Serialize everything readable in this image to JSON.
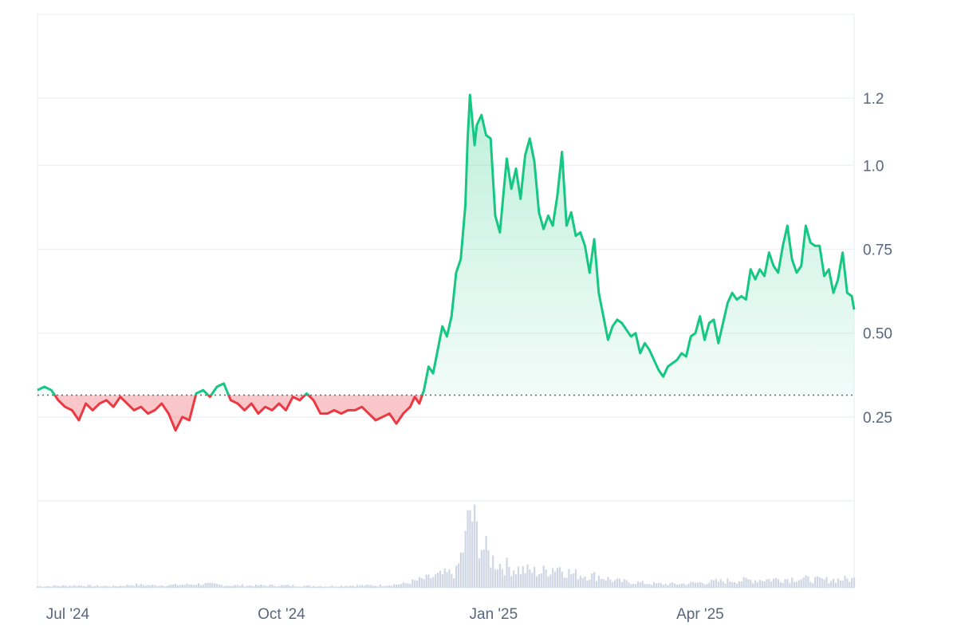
{
  "chart_data": {
    "type": "area",
    "baseline": 0.315,
    "grid": true,
    "y_ticks": [
      {
        "value": 0.25,
        "label": "0.25"
      },
      {
        "value": 0.5,
        "label": "0.50"
      },
      {
        "value": 0.75,
        "label": "0.75"
      },
      {
        "value": 1.0,
        "label": "1.0"
      },
      {
        "value": 1.2,
        "label": "1.2"
      }
    ],
    "x_ticks": [
      {
        "date": "2024-07-01",
        "label": "Jul '24"
      },
      {
        "date": "2024-10-01",
        "label": "Oct '24"
      },
      {
        "date": "2025-01-01",
        "label": "Jan '25"
      },
      {
        "date": "2025-04-01",
        "label": "Apr '25"
      }
    ],
    "x_range": [
      "2024-06-29",
      "2025-06-19"
    ],
    "y_range": [
      0,
      1.45
    ],
    "price_series": [
      [
        "2024-06-29",
        0.33
      ],
      [
        "2024-07-02",
        0.34
      ],
      [
        "2024-07-05",
        0.33
      ],
      [
        "2024-07-08",
        0.3
      ],
      [
        "2024-07-11",
        0.28
      ],
      [
        "2024-07-14",
        0.27
      ],
      [
        "2024-07-17",
        0.24
      ],
      [
        "2024-07-20",
        0.29
      ],
      [
        "2024-07-23",
        0.27
      ],
      [
        "2024-07-26",
        0.29
      ],
      [
        "2024-07-29",
        0.3
      ],
      [
        "2024-08-01",
        0.28
      ],
      [
        "2024-08-04",
        0.31
      ],
      [
        "2024-08-07",
        0.29
      ],
      [
        "2024-08-10",
        0.27
      ],
      [
        "2024-08-13",
        0.28
      ],
      [
        "2024-08-16",
        0.26
      ],
      [
        "2024-08-19",
        0.27
      ],
      [
        "2024-08-22",
        0.29
      ],
      [
        "2024-08-25",
        0.26
      ],
      [
        "2024-08-28",
        0.21
      ],
      [
        "2024-08-31",
        0.25
      ],
      [
        "2024-09-03",
        0.24
      ],
      [
        "2024-09-06",
        0.32
      ],
      [
        "2024-09-09",
        0.33
      ],
      [
        "2024-09-12",
        0.31
      ],
      [
        "2024-09-15",
        0.34
      ],
      [
        "2024-09-18",
        0.35
      ],
      [
        "2024-09-21",
        0.3
      ],
      [
        "2024-09-24",
        0.29
      ],
      [
        "2024-09-27",
        0.27
      ],
      [
        "2024-09-30",
        0.29
      ],
      [
        "2024-10-03",
        0.26
      ],
      [
        "2024-10-06",
        0.28
      ],
      [
        "2024-10-09",
        0.27
      ],
      [
        "2024-10-12",
        0.29
      ],
      [
        "2024-10-15",
        0.27
      ],
      [
        "2024-10-18",
        0.31
      ],
      [
        "2024-10-21",
        0.3
      ],
      [
        "2024-10-24",
        0.32
      ],
      [
        "2024-10-27",
        0.3
      ],
      [
        "2024-10-30",
        0.26
      ],
      [
        "2024-11-02",
        0.26
      ],
      [
        "2024-11-05",
        0.27
      ],
      [
        "2024-11-08",
        0.26
      ],
      [
        "2024-11-11",
        0.27
      ],
      [
        "2024-11-14",
        0.27
      ],
      [
        "2024-11-17",
        0.28
      ],
      [
        "2024-11-20",
        0.26
      ],
      [
        "2024-11-23",
        0.24
      ],
      [
        "2024-11-26",
        0.25
      ],
      [
        "2024-11-29",
        0.26
      ],
      [
        "2024-12-02",
        0.23
      ],
      [
        "2024-12-05",
        0.26
      ],
      [
        "2024-12-08",
        0.28
      ],
      [
        "2024-12-10",
        0.31
      ],
      [
        "2024-12-12",
        0.29
      ],
      [
        "2024-12-14",
        0.33
      ],
      [
        "2024-12-16",
        0.4
      ],
      [
        "2024-12-18",
        0.38
      ],
      [
        "2024-12-20",
        0.45
      ],
      [
        "2024-12-22",
        0.52
      ],
      [
        "2024-12-24",
        0.49
      ],
      [
        "2024-12-26",
        0.55
      ],
      [
        "2024-12-28",
        0.68
      ],
      [
        "2024-12-30",
        0.72
      ],
      [
        "2025-01-01",
        0.88
      ],
      [
        "2025-01-02",
        1.08
      ],
      [
        "2025-01-03",
        1.21
      ],
      [
        "2025-01-05",
        1.06
      ],
      [
        "2025-01-06",
        1.12
      ],
      [
        "2025-01-08",
        1.15
      ],
      [
        "2025-01-10",
        1.09
      ],
      [
        "2025-01-12",
        1.08
      ],
      [
        "2025-01-14",
        0.85
      ],
      [
        "2025-01-16",
        0.8
      ],
      [
        "2025-01-19",
        1.02
      ],
      [
        "2025-01-21",
        0.93
      ],
      [
        "2025-01-23",
        0.99
      ],
      [
        "2025-01-25",
        0.9
      ],
      [
        "2025-01-27",
        1.03
      ],
      [
        "2025-01-29",
        1.08
      ],
      [
        "2025-01-31",
        1.01
      ],
      [
        "2025-02-02",
        0.86
      ],
      [
        "2025-02-04",
        0.81
      ],
      [
        "2025-02-06",
        0.85
      ],
      [
        "2025-02-08",
        0.82
      ],
      [
        "2025-02-10",
        0.91
      ],
      [
        "2025-02-12",
        1.04
      ],
      [
        "2025-02-14",
        0.82
      ],
      [
        "2025-02-16",
        0.86
      ],
      [
        "2025-02-18",
        0.79
      ],
      [
        "2025-02-20",
        0.8
      ],
      [
        "2025-02-22",
        0.76
      ],
      [
        "2025-02-24",
        0.68
      ],
      [
        "2025-02-26",
        0.78
      ],
      [
        "2025-02-28",
        0.62
      ],
      [
        "2025-03-02",
        0.55
      ],
      [
        "2025-03-04",
        0.48
      ],
      [
        "2025-03-06",
        0.52
      ],
      [
        "2025-03-08",
        0.54
      ],
      [
        "2025-03-10",
        0.53
      ],
      [
        "2025-03-12",
        0.51
      ],
      [
        "2025-03-14",
        0.49
      ],
      [
        "2025-03-16",
        0.5
      ],
      [
        "2025-03-18",
        0.44
      ],
      [
        "2025-03-20",
        0.47
      ],
      [
        "2025-03-22",
        0.45
      ],
      [
        "2025-03-24",
        0.42
      ],
      [
        "2025-03-26",
        0.39
      ],
      [
        "2025-03-28",
        0.37
      ],
      [
        "2025-03-30",
        0.4
      ],
      [
        "2025-04-01",
        0.41
      ],
      [
        "2025-04-03",
        0.42
      ],
      [
        "2025-04-05",
        0.44
      ],
      [
        "2025-04-07",
        0.43
      ],
      [
        "2025-04-09",
        0.49
      ],
      [
        "2025-04-11",
        0.5
      ],
      [
        "2025-04-13",
        0.55
      ],
      [
        "2025-04-15",
        0.48
      ],
      [
        "2025-04-17",
        0.53
      ],
      [
        "2025-04-19",
        0.54
      ],
      [
        "2025-04-21",
        0.47
      ],
      [
        "2025-04-23",
        0.53
      ],
      [
        "2025-04-25",
        0.59
      ],
      [
        "2025-04-27",
        0.62
      ],
      [
        "2025-04-29",
        0.6
      ],
      [
        "2025-05-01",
        0.61
      ],
      [
        "2025-05-03",
        0.6
      ],
      [
        "2025-05-05",
        0.69
      ],
      [
        "2025-05-07",
        0.66
      ],
      [
        "2025-05-09",
        0.69
      ],
      [
        "2025-05-11",
        0.67
      ],
      [
        "2025-05-13",
        0.74
      ],
      [
        "2025-05-15",
        0.7
      ],
      [
        "2025-05-17",
        0.68
      ],
      [
        "2025-05-19",
        0.76
      ],
      [
        "2025-05-21",
        0.82
      ],
      [
        "2025-05-23",
        0.72
      ],
      [
        "2025-05-25",
        0.68
      ],
      [
        "2025-05-27",
        0.7
      ],
      [
        "2025-05-29",
        0.82
      ],
      [
        "2025-05-31",
        0.77
      ],
      [
        "2025-06-02",
        0.76
      ],
      [
        "2025-06-04",
        0.76
      ],
      [
        "2025-06-06",
        0.67
      ],
      [
        "2025-06-08",
        0.69
      ],
      [
        "2025-06-10",
        0.62
      ],
      [
        "2025-06-12",
        0.66
      ],
      [
        "2025-06-14",
        0.74
      ],
      [
        "2025-06-16",
        0.62
      ],
      [
        "2025-06-18",
        0.61
      ],
      [
        "2025-06-19",
        0.57
      ]
    ],
    "volume_series": [
      [
        "2024-07-01",
        2
      ],
      [
        "2024-07-15",
        3
      ],
      [
        "2024-08-01",
        2
      ],
      [
        "2024-08-10",
        4
      ],
      [
        "2024-08-20",
        3
      ],
      [
        "2024-09-01",
        4
      ],
      [
        "2024-09-10",
        5
      ],
      [
        "2024-09-20",
        3
      ],
      [
        "2024-10-01",
        3
      ],
      [
        "2024-10-15",
        3
      ],
      [
        "2024-11-01",
        2
      ],
      [
        "2024-11-15",
        3
      ],
      [
        "2024-11-25",
        3
      ],
      [
        "2024-12-05",
        5
      ],
      [
        "2024-12-12",
        10
      ],
      [
        "2024-12-18",
        14
      ],
      [
        "2024-12-24",
        18
      ],
      [
        "2024-12-28",
        20
      ],
      [
        "2025-01-01",
        60
      ],
      [
        "2025-01-03",
        100
      ],
      [
        "2025-01-05",
        80
      ],
      [
        "2025-01-08",
        55
      ],
      [
        "2025-01-12",
        38
      ],
      [
        "2025-01-16",
        30
      ],
      [
        "2025-01-22",
        25
      ],
      [
        "2025-01-28",
        22
      ],
      [
        "2025-02-03",
        20
      ],
      [
        "2025-02-10",
        28
      ],
      [
        "2025-02-16",
        18
      ],
      [
        "2025-02-22",
        16
      ],
      [
        "2025-02-28",
        15
      ],
      [
        "2025-03-07",
        9
      ],
      [
        "2025-03-15",
        7
      ],
      [
        "2025-03-25",
        5
      ],
      [
        "2025-04-05",
        5
      ],
      [
        "2025-04-15",
        7
      ],
      [
        "2025-04-25",
        9
      ],
      [
        "2025-05-05",
        10
      ],
      [
        "2025-05-15",
        11
      ],
      [
        "2025-05-25",
        12
      ],
      [
        "2025-06-05",
        10
      ],
      [
        "2025-06-15",
        11
      ]
    ],
    "colors": {
      "up_line": "#16c784",
      "down_line": "#ea3943",
      "up_fill": "#16c784",
      "down_fill": "#ea3943",
      "grid": "#eff2f5",
      "volume": "#cfd6e4",
      "tick_text": "#58667e",
      "baseline": "#58667e"
    }
  }
}
